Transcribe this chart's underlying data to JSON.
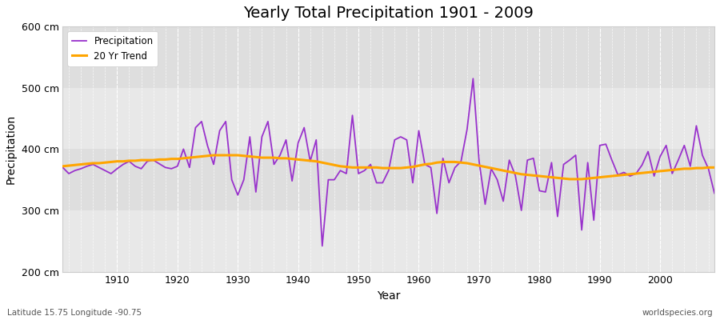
{
  "title": "Yearly Total Precipitation 1901 - 2009",
  "xlabel": "Year",
  "ylabel": "Precipitation",
  "bottom_left_label": "Latitude 15.75 Longitude -90.75",
  "bottom_right_label": "worldspecies.org",
  "precip_color": "#9932CC",
  "trend_color": "#FFA500",
  "fig_bg_color": "#FFFFFF",
  "plot_bg_color": "#EBEBEB",
  "years": [
    1901,
    1902,
    1903,
    1904,
    1905,
    1906,
    1907,
    1908,
    1909,
    1910,
    1911,
    1912,
    1913,
    1914,
    1915,
    1916,
    1917,
    1918,
    1919,
    1920,
    1921,
    1922,
    1923,
    1924,
    1925,
    1926,
    1927,
    1928,
    1929,
    1930,
    1931,
    1932,
    1933,
    1934,
    1935,
    1936,
    1937,
    1938,
    1939,
    1940,
    1941,
    1942,
    1943,
    1944,
    1945,
    1946,
    1947,
    1948,
    1949,
    1950,
    1951,
    1952,
    1953,
    1954,
    1955,
    1956,
    1957,
    1958,
    1959,
    1960,
    1961,
    1962,
    1963,
    1964,
    1965,
    1966,
    1967,
    1968,
    1969,
    1970,
    1971,
    1972,
    1973,
    1974,
    1975,
    1976,
    1977,
    1978,
    1979,
    1980,
    1981,
    1982,
    1983,
    1984,
    1985,
    1986,
    1987,
    1988,
    1989,
    1990,
    1991,
    1992,
    1993,
    1994,
    1995,
    1996,
    1997,
    1998,
    1999,
    2000,
    2001,
    2002,
    2003,
    2004,
    2005,
    2006,
    2007,
    2008,
    2009
  ],
  "precipitation": [
    370,
    360,
    365,
    368,
    372,
    375,
    370,
    365,
    360,
    368,
    375,
    380,
    372,
    368,
    380,
    382,
    376,
    370,
    368,
    372,
    400,
    370,
    435,
    445,
    405,
    375,
    430,
    445,
    350,
    325,
    350,
    420,
    330,
    420,
    445,
    375,
    390,
    415,
    348,
    410,
    435,
    380,
    415,
    242,
    350,
    350,
    365,
    360,
    455,
    360,
    365,
    375,
    345,
    345,
    365,
    415,
    420,
    415,
    345,
    430,
    375,
    370,
    295,
    385,
    345,
    370,
    380,
    432,
    515,
    380,
    310,
    368,
    350,
    315,
    382,
    357,
    300,
    382,
    385,
    332,
    330,
    378,
    290,
    375,
    382,
    390,
    268,
    378,
    284,
    406,
    408,
    382,
    358,
    362,
    356,
    360,
    374,
    396,
    356,
    388,
    406,
    360,
    382,
    406,
    372,
    438,
    390,
    368,
    328
  ],
  "trend": [
    372,
    373,
    374,
    375,
    376,
    377,
    377,
    378,
    379,
    380,
    380,
    381,
    381,
    382,
    382,
    382,
    383,
    383,
    384,
    384,
    385,
    386,
    387,
    388,
    389,
    390,
    390,
    390,
    390,
    390,
    389,
    388,
    387,
    386,
    386,
    386,
    385,
    385,
    384,
    383,
    382,
    381,
    380,
    378,
    376,
    374,
    372,
    371,
    370,
    370,
    370,
    370,
    370,
    369,
    369,
    369,
    369,
    370,
    371,
    373,
    375,
    376,
    378,
    379,
    379,
    379,
    378,
    377,
    375,
    373,
    371,
    369,
    367,
    365,
    363,
    361,
    359,
    358,
    357,
    356,
    355,
    354,
    353,
    352,
    351,
    351,
    351,
    352,
    353,
    354,
    355,
    356,
    357,
    358,
    359,
    360,
    361,
    362,
    363,
    364,
    365,
    366,
    367,
    368,
    368,
    369,
    369,
    370,
    370
  ],
  "ylim": [
    200,
    600
  ],
  "xlim": [
    1901,
    2009
  ],
  "yticks": [
    200,
    300,
    400,
    500,
    600
  ],
  "ytick_labels": [
    "200 cm",
    "300 cm",
    "400 cm",
    "500 cm",
    "600 cm"
  ],
  "xticks": [
    1910,
    1920,
    1930,
    1940,
    1950,
    1960,
    1970,
    1980,
    1990,
    2000
  ],
  "band_colors": [
    "#E8E8E8",
    "#DEDEDE"
  ]
}
